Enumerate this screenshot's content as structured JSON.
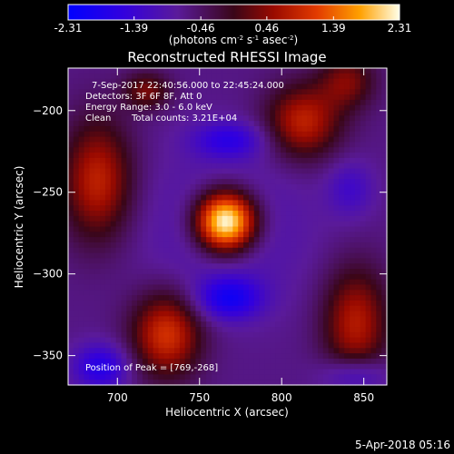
{
  "chart_data": {
    "type": "heatmap",
    "title": "Reconstructed RHESSI Image",
    "xlabel": "Heliocentric X (arcsec)",
    "ylabel": "Heliocentric Y (arcsec)",
    "xlim": [
      670,
      864
    ],
    "ylim": [
      -368,
      -174
    ],
    "xticks": [
      700,
      750,
      800,
      850
    ],
    "yticks": [
      -200,
      -250,
      -300,
      -350
    ],
    "colorbar": {
      "min": -2.31,
      "max": 2.31,
      "tick_labels": [
        "-2.31",
        "-1.39",
        "-0.46",
        "0.46",
        "1.39",
        "2.31"
      ],
      "tick_values": [
        -2.31,
        -1.39,
        -0.46,
        0.46,
        1.39,
        2.31
      ],
      "unit_base": "(photons cm",
      "unit_exp1": "-2",
      "unit_mid": " s",
      "unit_exp2": "-1",
      "unit_mid2": " asec",
      "unit_exp3": "-2",
      "unit_end": ")"
    },
    "annotations": {
      "line1": "7-Sep-2017 22:40:56.000 to 22:45:24.000",
      "line2": "Detectors: 3F 6F 8F, Att 0",
      "line3": "Energy Range: 3.0 - 6.0 keV",
      "line4_a": "Clean",
      "line4_b": "Total counts: 3.21E+04",
      "peak": "Position of Peak = [769,-268]"
    },
    "peak_position": [
      769,
      -268
    ],
    "features": [
      {
        "x": 766,
        "y": -268,
        "sx": 13,
        "sy": 13,
        "amp": 3.4
      },
      {
        "x": 766,
        "y": -272,
        "sx": 36,
        "sy": 34,
        "amp": -0.5
      },
      {
        "x": 813,
        "y": -207,
        "sx": 16,
        "sy": 16,
        "amp": 1.5
      },
      {
        "x": 840,
        "y": -182,
        "sx": 12,
        "sy": 12,
        "amp": 1.0
      },
      {
        "x": 688,
        "y": -243,
        "sx": 15,
        "sy": 26,
        "amp": 1.5
      },
      {
        "x": 730,
        "y": -337,
        "sx": 15,
        "sy": 18,
        "amp": 1.7
      },
      {
        "x": 845,
        "y": -330,
        "sx": 14,
        "sy": 24,
        "amp": 1.4
      },
      {
        "x": 718,
        "y": -188,
        "sx": 10,
        "sy": 8,
        "amp": 1.0
      },
      {
        "x": 768,
        "y": -315,
        "sx": 14,
        "sy": 9,
        "amp": -1.2
      },
      {
        "x": 768,
        "y": -218,
        "sx": 16,
        "sy": 8,
        "amp": -0.9
      },
      {
        "x": 690,
        "y": -357,
        "sx": 12,
        "sy": 10,
        "amp": -1.1
      },
      {
        "x": 845,
        "y": -362,
        "sx": 14,
        "sy": 8,
        "amp": -0.9
      },
      {
        "x": 842,
        "y": -248,
        "sx": 10,
        "sy": 12,
        "amp": -0.6
      }
    ]
  },
  "footer": {
    "timestamp": "5-Apr-2018 05:16"
  }
}
